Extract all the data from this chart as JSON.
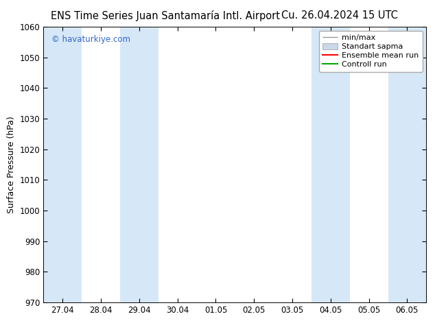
{
  "title_left": "ENS Time Series Juan Santamaría Intl. Airport",
  "title_right": "Cu. 26.04.2024 15 UTC",
  "ylabel": "Surface Pressure (hPa)",
  "ylim": [
    970,
    1060
  ],
  "yticks": [
    970,
    980,
    990,
    1000,
    1010,
    1020,
    1030,
    1040,
    1050,
    1060
  ],
  "x_tick_labels": [
    "27.04",
    "28.04",
    "29.04",
    "30.04",
    "01.05",
    "02.05",
    "03.05",
    "04.05",
    "05.05",
    "06.05"
  ],
  "x_tick_positions": [
    0,
    1,
    2,
    3,
    4,
    5,
    6,
    7,
    8,
    9
  ],
  "xlim": [
    -0.5,
    9.5
  ],
  "watermark": "© havaturkiye.com",
  "watermark_color": "#3366cc",
  "bg_color": "#ffffff",
  "plot_bg_color": "#ffffff",
  "shaded_bands": [
    {
      "x_start": -0.5,
      "x_end": 0.5,
      "color": "#d6e8f7"
    },
    {
      "x_start": 1.5,
      "x_end": 2.5,
      "color": "#d6e8f7"
    },
    {
      "x_start": 6.5,
      "x_end": 7.5,
      "color": "#d6e8f7"
    },
    {
      "x_start": 8.5,
      "x_end": 9.5,
      "color": "#d6e8f7"
    }
  ],
  "legend_entries": [
    {
      "label": "min/max",
      "color": "#aaaaaa",
      "style": "errorbar"
    },
    {
      "label": "Standart sapma",
      "color": "#c8d8e8",
      "style": "box"
    },
    {
      "label": "Ensemble mean run",
      "color": "#ff0000",
      "style": "line"
    },
    {
      "label": "Controll run",
      "color": "#00aa00",
      "style": "line"
    }
  ],
  "title_fontsize": 10.5,
  "axis_label_fontsize": 9,
  "tick_fontsize": 8.5,
  "legend_fontsize": 8
}
